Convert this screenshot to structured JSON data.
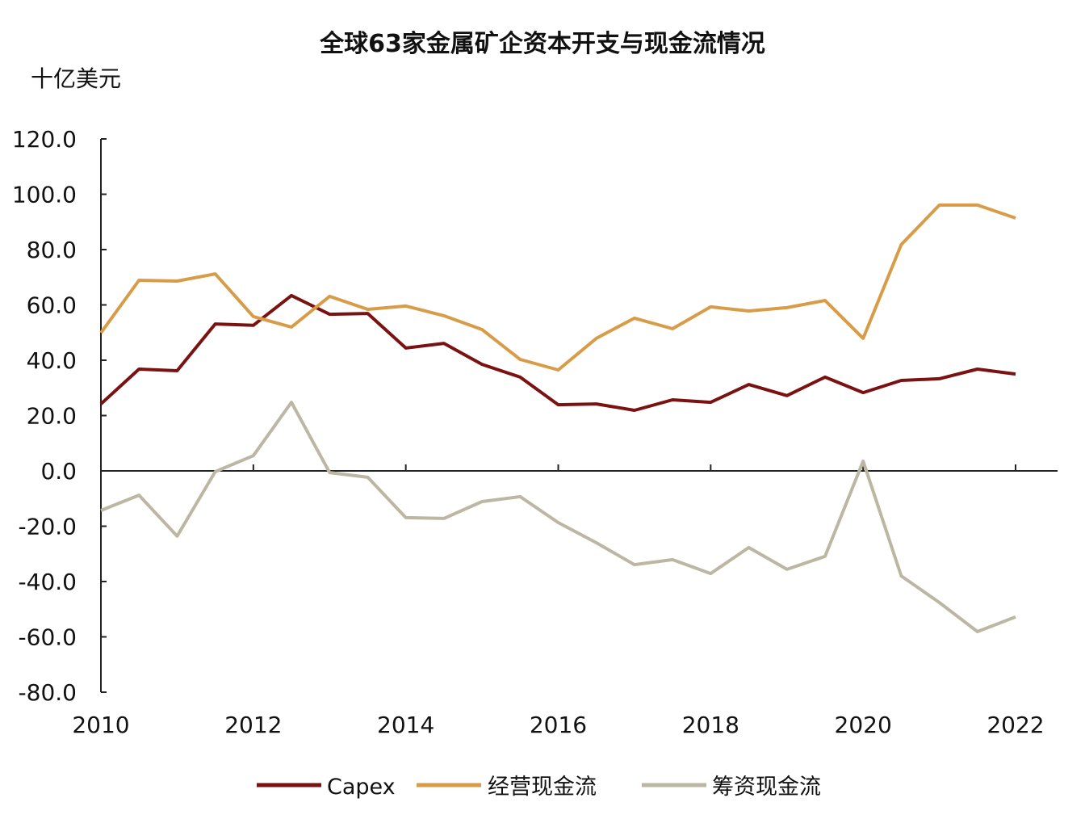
{
  "chart_data": {
    "type": "line",
    "title": "全球63家金属矿企资本开支与现金流情况",
    "ylabel": "十亿美元",
    "xlabel": "",
    "ylim": [
      -80,
      120
    ],
    "xlim": [
      2010,
      2022
    ],
    "yticks": [
      "120.0",
      "100.0",
      "80.0",
      "60.0",
      "40.0",
      "20.0",
      "0.0",
      "-20.0",
      "-40.0",
      "-60.0",
      "-80.0"
    ],
    "ytick_values": [
      120,
      100,
      80,
      60,
      40,
      20,
      0,
      -20,
      -40,
      -60,
      -80
    ],
    "xticks": [
      "2010",
      "2012",
      "2014",
      "2016",
      "2018",
      "2020",
      "2022"
    ],
    "xtick_values": [
      2010,
      2012,
      2014,
      2016,
      2018,
      2020,
      2022
    ],
    "grid": false,
    "legend_position": "bottom",
    "x": [
      2010,
      2010.5,
      2011,
      2011.5,
      2012,
      2012.5,
      2013,
      2013.5,
      2014,
      2014.5,
      2015,
      2015.5,
      2016,
      2016.5,
      2017,
      2017.5,
      2018,
      2018.5,
      2019,
      2019.5,
      2020,
      2020.5,
      2021,
      2021.5,
      2022
    ],
    "series": [
      {
        "name": "Capex",
        "color": "#7a1212",
        "values": [
          24.2,
          36.8,
          36.2,
          53.1,
          52.6,
          63.4,
          56.6,
          56.9,
          44.4,
          46.1,
          38.5,
          33.9,
          23.9,
          24.2,
          21.9,
          25.7,
          24.8,
          31.2,
          27.2,
          33.9,
          28.3,
          32.7,
          33.3,
          36.8,
          35.0
        ]
      },
      {
        "name": "经营现金流",
        "color": "#d89c48",
        "values": [
          49.9,
          68.9,
          68.6,
          71.2,
          55.8,
          52.0,
          63.1,
          58.4,
          59.6,
          56.1,
          51.1,
          40.3,
          36.5,
          47.9,
          55.2,
          51.4,
          59.3,
          57.8,
          59.0,
          61.6,
          47.9,
          81.8,
          96.1,
          96.1,
          91.4
        ]
      },
      {
        "name": "筹资现金流",
        "color": "#bbb7a3",
        "values": [
          -14.3,
          -8.8,
          -23.6,
          -0.3,
          5.5,
          24.8,
          -0.6,
          -2.3,
          -16.9,
          -17.2,
          -11.1,
          -9.3,
          -18.7,
          -26.0,
          -33.9,
          -32.1,
          -37.1,
          -27.7,
          -35.6,
          -30.9,
          3.5,
          -38.0,
          -47.6,
          -58.1,
          -52.8
        ]
      }
    ]
  }
}
